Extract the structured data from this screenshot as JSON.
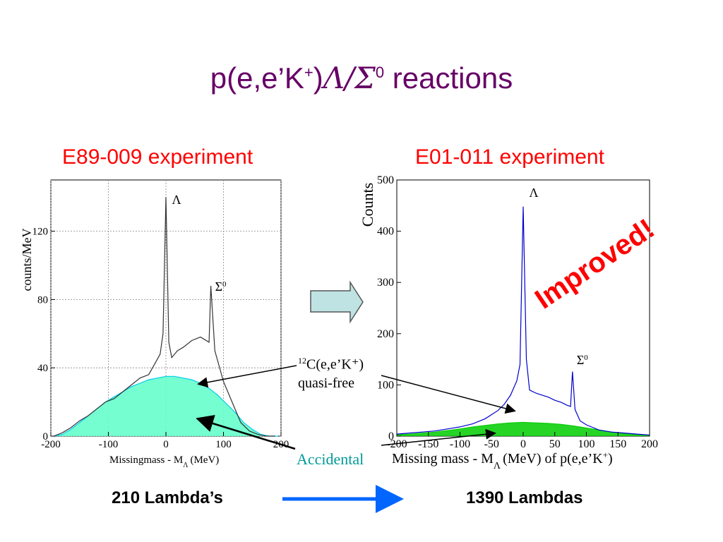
{
  "slide": {
    "title_prefix": "p(e,e’K",
    "title_sup": "+",
    "title_paren": ")",
    "title_greek": "Λ/Σ",
    "title_sup2": "0",
    "title_suffix": " reactions",
    "left_heading": "E89-009 experiment",
    "right_heading": "E01-011 experiment",
    "improved": "Improved!",
    "qf_line1_sup": "12",
    "qf_line1": "C(e,e’K⁺)",
    "qf_line2": "quasi-free",
    "accidental": "Accidental",
    "left_count": "210 Lambda’s",
    "right_count": "1390 Lambdas"
  },
  "colors": {
    "title": "#660066",
    "heading": "#ff0000",
    "left_total": "#333333",
    "left_fill": "#66ffcc",
    "left_accidental_line": "#00ccee",
    "right_total": "#0000cc",
    "right_accidental": "#00cc00",
    "arrow_fill": "#bfe3e3",
    "arrow_blue": "#0066ff"
  },
  "chart_data": [
    {
      "type": "line",
      "ylabel": "counts/MeV",
      "xlabel": "Missingmass - M",
      "xlabel_sub": "Λ",
      "xlabel_unit": "(MeV)",
      "xlim": [
        -200,
        200
      ],
      "ylim": [
        0,
        150
      ],
      "x_ticks": [
        -200,
        -100,
        0,
        100,
        200
      ],
      "y_ticks": [
        0,
        40,
        80,
        120
      ],
      "grid": true,
      "peak_labels": [
        {
          "label": "Λ",
          "x": 0
        },
        {
          "label": "Σ",
          "sup": "0",
          "x": 78
        }
      ],
      "series": [
        {
          "x": [
            -195,
            -180,
            -165,
            -150,
            -135,
            -120,
            -105,
            -90,
            -75,
            -60,
            -45,
            -30,
            -20,
            -10,
            -5,
            0,
            5,
            10,
            20,
            30,
            45,
            60,
            75,
            78,
            85,
            100,
            115,
            130,
            145,
            160,
            175,
            190
          ],
          "values": [
            0,
            2,
            5,
            9,
            12,
            16,
            20,
            22,
            26,
            30,
            34,
            36,
            42,
            48,
            60,
            140,
            55,
            46,
            50,
            52,
            56,
            58,
            55,
            88,
            50,
            32,
            20,
            8,
            3,
            1,
            0,
            0
          ]
        },
        {
          "x": [
            -195,
            -180,
            -165,
            -150,
            -135,
            -120,
            -105,
            -90,
            -75,
            -60,
            -45,
            -30,
            -15,
            0,
            15,
            30,
            45,
            60,
            75,
            90,
            105,
            120,
            135,
            150,
            165,
            180,
            195
          ],
          "values": [
            0,
            1,
            4,
            8,
            12,
            16,
            20,
            23,
            26,
            29,
            31,
            33,
            34,
            35,
            35,
            34,
            33,
            31,
            28,
            24,
            19,
            14,
            8,
            4,
            1,
            0,
            0
          ]
        }
      ]
    },
    {
      "type": "line",
      "ylabel": "Counts",
      "xlabel": "Missing mass - M",
      "xlabel_sub": "Λ",
      "xlabel_unit": "(MeV) of p(e,e’K",
      "xlabel_sup": "+",
      "xlabel_end": ")",
      "xlim": [
        -200,
        200
      ],
      "ylim": [
        0,
        500
      ],
      "x_ticks": [
        -200,
        -150,
        -100,
        -50,
        0,
        50,
        100,
        150,
        200
      ],
      "y_ticks": [
        0,
        100,
        200,
        300,
        400,
        500
      ],
      "grid": false,
      "peak_labels": [
        {
          "label": "Λ",
          "x": 0
        },
        {
          "label": "Σ",
          "sup": "0",
          "x": 78
        }
      ],
      "series": [
        {
          "x": [
            -200,
            -180,
            -160,
            -140,
            -120,
            -100,
            -80,
            -60,
            -40,
            -30,
            -20,
            -10,
            -5,
            0,
            5,
            10,
            20,
            30,
            40,
            50,
            60,
            70,
            75,
            78,
            82,
            90,
            100,
            120,
            140,
            160,
            180,
            200
          ],
          "values": [
            4,
            6,
            8,
            10,
            14,
            18,
            24,
            34,
            50,
            62,
            80,
            108,
            140,
            448,
            150,
            90,
            84,
            80,
            76,
            70,
            66,
            60,
            58,
            126,
            52,
            30,
            22,
            12,
            8,
            6,
            4,
            2
          ]
        },
        {
          "x": [
            -200,
            -180,
            -160,
            -140,
            -120,
            -100,
            -80,
            -60,
            -40,
            -20,
            0,
            20,
            40,
            60,
            80,
            100,
            120,
            140,
            160,
            180,
            200
          ],
          "values": [
            3,
            4,
            6,
            8,
            11,
            14,
            18,
            21,
            24,
            26,
            27,
            26,
            25,
            23,
            20,
            16,
            12,
            8,
            5,
            3,
            2
          ]
        }
      ]
    }
  ]
}
